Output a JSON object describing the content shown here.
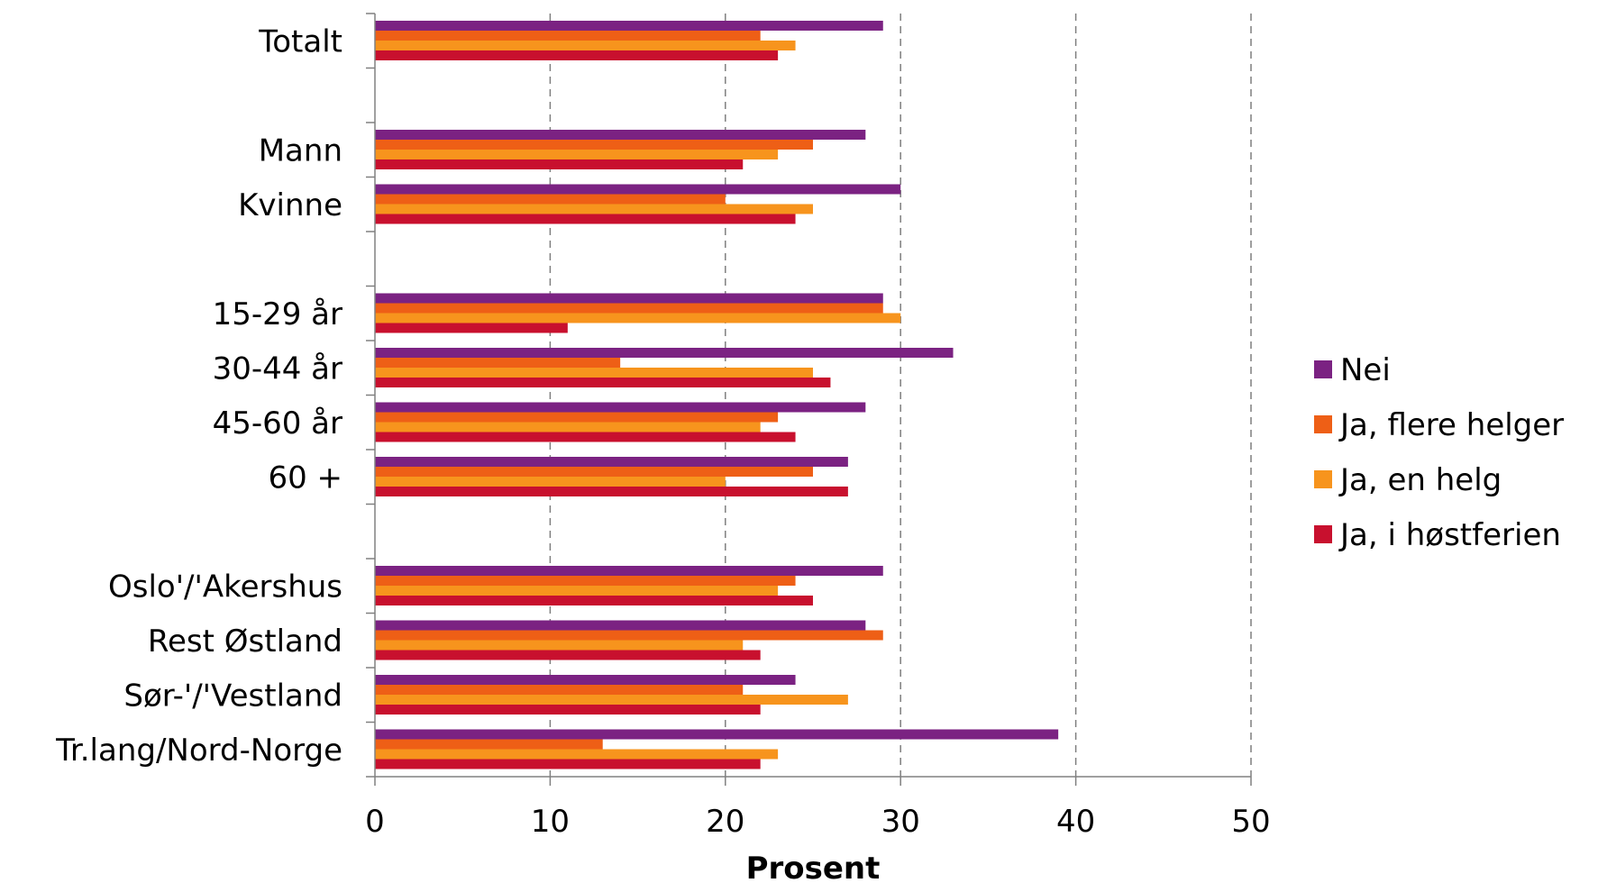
{
  "chart_data": {
    "type": "bar",
    "orientation": "horizontal",
    "title": "",
    "xlabel": "Prosent",
    "ylabel": "",
    "xlim": [
      0,
      50
    ],
    "xticks": [
      "0",
      "10",
      "20",
      "30",
      "40",
      "50"
    ],
    "grid": "vertical dashed",
    "legend_position": "right",
    "colors": {
      "Nei": "#7B2282",
      "Ja, flere helger": "#EE5F16",
      "Ja, en helg": "#F7941D",
      "Ja, i høstferien": "#C8102E"
    },
    "categories": [
      "Totalt",
      "",
      "Mann",
      "Kvinne",
      "",
      "15-29 år",
      "30-44 år",
      "45-60 år",
      "60 +",
      "",
      "Oslo'/'Akershus",
      "Rest Østland",
      "Sør-'/'Vestland",
      "Tr.lang/Nord-Norge"
    ],
    "series": [
      {
        "name": "Nei",
        "values": [
          29,
          null,
          28,
          30,
          null,
          29,
          33,
          28,
          27,
          null,
          29,
          28,
          24,
          39
        ]
      },
      {
        "name": "Ja, flere helger",
        "values": [
          22,
          null,
          25,
          20,
          null,
          29,
          14,
          23,
          25,
          null,
          24,
          29,
          21,
          13
        ]
      },
      {
        "name": "Ja, en helg",
        "values": [
          24,
          null,
          23,
          25,
          null,
          30,
          25,
          22,
          20,
          null,
          23,
          21,
          27,
          23
        ]
      },
      {
        "name": "Ja, i høstferien",
        "values": [
          23,
          null,
          21,
          24,
          null,
          11,
          26,
          24,
          27,
          null,
          25,
          22,
          22,
          22
        ]
      }
    ]
  }
}
